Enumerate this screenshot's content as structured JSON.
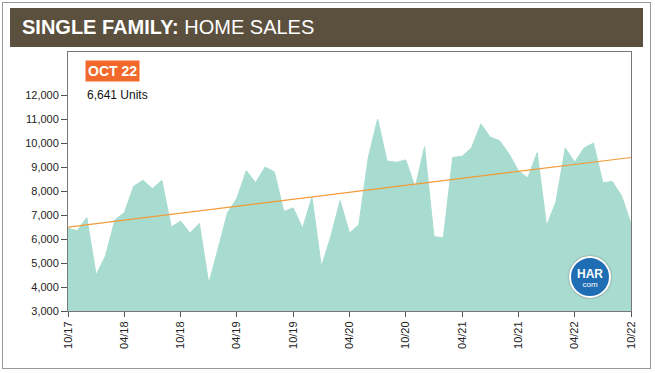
{
  "chart_data": {
    "type": "area",
    "title": "SINGLE FAMILY: HOME SALES",
    "annotations": [
      "OCT 22",
      "6,641 Units"
    ],
    "logo": {
      "text": "HAR",
      "subtext": "com"
    },
    "categories": [
      "10/17",
      null,
      null,
      null,
      null,
      null,
      "04/18",
      null,
      null,
      null,
      null,
      null,
      "10/18",
      null,
      null,
      null,
      null,
      null,
      "04/19",
      null,
      null,
      null,
      null,
      null,
      "10/19",
      null,
      null,
      null,
      null,
      null,
      "04/20",
      null,
      null,
      null,
      null,
      null,
      "10/20",
      null,
      null,
      null,
      null,
      null,
      "04/21",
      null,
      null,
      null,
      null,
      null,
      "10/21",
      null,
      null,
      null,
      null,
      null,
      "04/22",
      null,
      null,
      null,
      null,
      null,
      "10/22"
    ],
    "values": [
      6450,
      6350,
      6900,
      4500,
      5300,
      6800,
      7100,
      8200,
      8450,
      8100,
      8450,
      6500,
      6750,
      6250,
      6650,
      4150,
      5600,
      7100,
      7700,
      8850,
      8350,
      9000,
      8800,
      7150,
      7300,
      6450,
      7750,
      4850,
      6100,
      7600,
      6250,
      6600,
      9400,
      11000,
      9250,
      9200,
      9300,
      8150,
      9850,
      6100,
      6050,
      9400,
      9450,
      9800,
      10800,
      10250,
      10100,
      9550,
      8850,
      8550,
      9600,
      6550,
      7550,
      9800,
      9200,
      9800,
      10000,
      8350,
      8400,
      7800,
      6641
    ],
    "color": "#a8dcd0",
    "trend": {
      "values": [
        6500,
        9400
      ],
      "color": "#f29b38"
    },
    "ylim": [
      3000,
      13800
    ],
    "yticks": [
      {
        "value": 3000,
        "label": "3,000"
      },
      {
        "value": 4000,
        "label": "4,000"
      },
      {
        "value": 5000,
        "label": "5,000"
      },
      {
        "value": 6000,
        "label": "6,000"
      },
      {
        "value": 7000,
        "label": "7,000"
      },
      {
        "value": 8000,
        "label": "8,000"
      },
      {
        "value": 9000,
        "label": "9,000"
      },
      {
        "value": 10000,
        "label": "10,000"
      },
      {
        "value": 11000,
        "label": "11,000"
      },
      {
        "value": 12000,
        "label": "12,000"
      }
    ],
    "grid": false
  }
}
